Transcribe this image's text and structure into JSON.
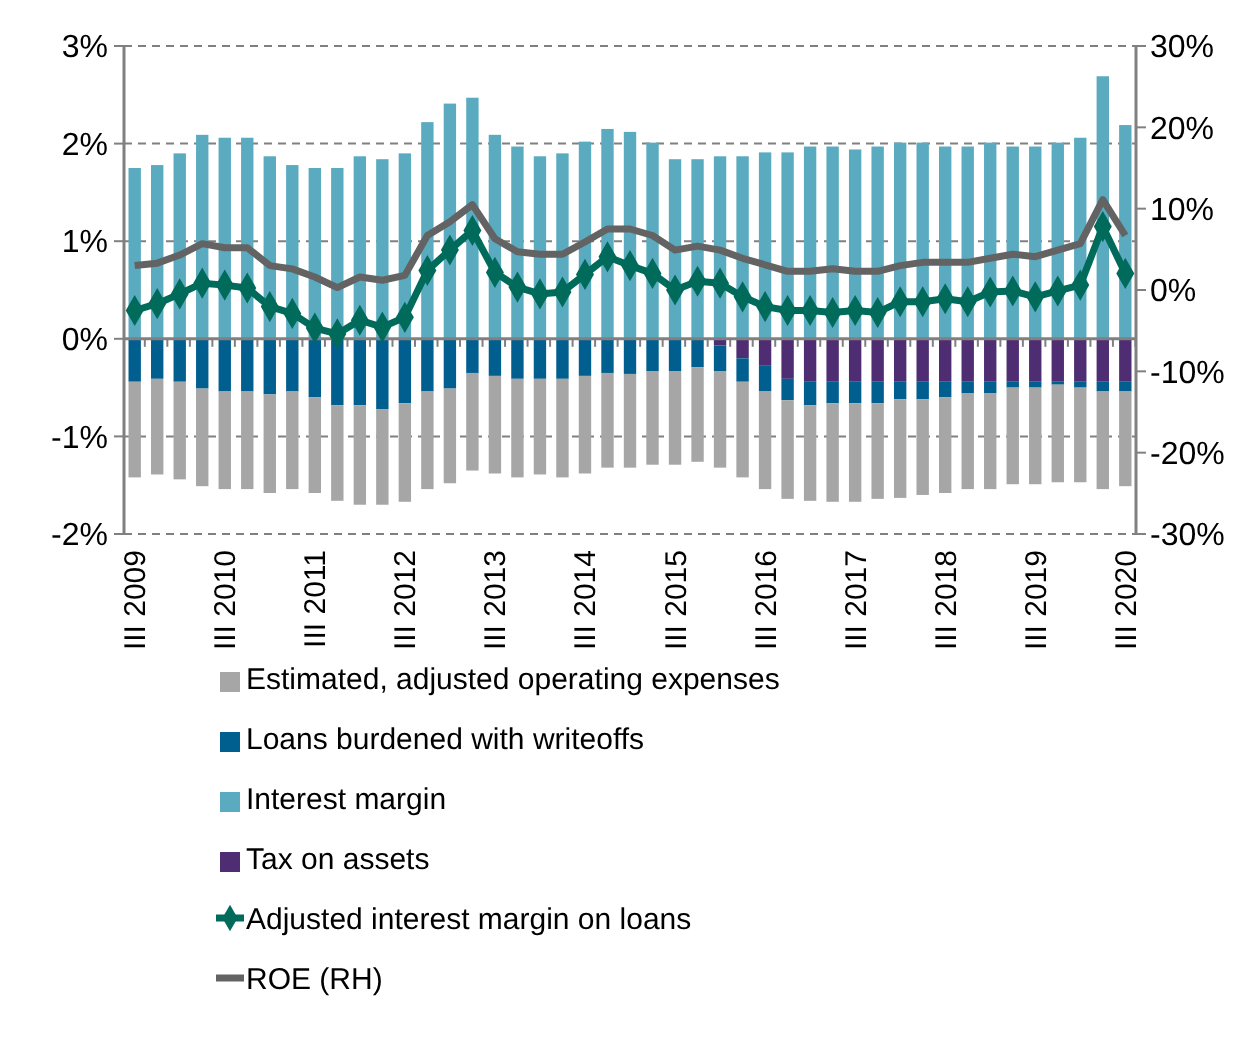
{
  "chart_data": {
    "type": "bar",
    "stacked": true,
    "categories": [
      "III 2009",
      null,
      null,
      null,
      "III 2010",
      null,
      null,
      null,
      "III 2011",
      null,
      null,
      null,
      "III 2012",
      null,
      null,
      null,
      "III 2013",
      null,
      null,
      null,
      "III 2014",
      null,
      null,
      null,
      "III 2015",
      null,
      null,
      null,
      "III 2016",
      null,
      null,
      null,
      "III 2017",
      null,
      null,
      null,
      "III 2018",
      null,
      null,
      null,
      "III 2019",
      null,
      null,
      null,
      "III 2020"
    ],
    "series": [
      {
        "name": "Tax on assets",
        "color": "#4f2d72",
        "values": [
          0,
          0,
          0,
          0,
          0,
          0,
          0,
          0,
          0,
          0,
          0,
          0,
          0,
          0,
          0,
          0,
          0,
          0,
          0,
          0,
          0,
          0,
          0,
          0,
          0,
          0,
          -0.07,
          -0.2,
          -0.27,
          -0.41,
          -0.44,
          -0.44,
          -0.44,
          -0.44,
          -0.44,
          -0.44,
          -0.44,
          -0.44,
          -0.44,
          -0.44,
          -0.44,
          -0.44,
          -0.44,
          -0.44,
          -0.44
        ]
      },
      {
        "name": "Interest margin",
        "color": "#5aabc0",
        "values": [
          1.75,
          1.78,
          1.9,
          2.09,
          2.06,
          2.06,
          1.87,
          1.78,
          1.75,
          1.75,
          1.87,
          1.84,
          1.9,
          2.22,
          2.41,
          2.47,
          2.09,
          1.97,
          1.87,
          1.9,
          2.02,
          2.15,
          2.12,
          2.01,
          1.84,
          1.84,
          1.87,
          1.87,
          1.91,
          1.91,
          1.97,
          1.97,
          1.94,
          1.97,
          2.01,
          2.01,
          1.97,
          1.97,
          2.01,
          1.97,
          1.97,
          2.01,
          2.06,
          2.69,
          2.19
        ]
      },
      {
        "name": "Loans burdened with writeoffs",
        "color": "#005f8f",
        "values": [
          -0.44,
          -0.41,
          -0.44,
          -0.51,
          -0.54,
          -0.54,
          -0.57,
          -0.54,
          -0.6,
          -0.68,
          -0.68,
          -0.72,
          -0.66,
          -0.54,
          -0.51,
          -0.35,
          -0.38,
          -0.41,
          -0.41,
          -0.41,
          -0.38,
          -0.35,
          -0.36,
          -0.33,
          -0.33,
          -0.29,
          -0.26,
          -0.24,
          -0.27,
          -0.22,
          -0.24,
          -0.22,
          -0.22,
          -0.22,
          -0.18,
          -0.18,
          -0.16,
          -0.12,
          -0.12,
          -0.06,
          -0.06,
          -0.03,
          -0.06,
          -0.1,
          -0.1
        ]
      },
      {
        "name": "Estimated, adjusted operating expenses",
        "color": "#a6a6a6",
        "values": [
          -0.98,
          -0.98,
          -1,
          -1,
          -1,
          -1,
          -1.01,
          -1,
          -0.98,
          -0.98,
          -1.02,
          -0.98,
          -1.01,
          -1,
          -0.97,
          -1,
          -1,
          -1.01,
          -0.98,
          -1.01,
          -1,
          -0.97,
          -0.96,
          -0.96,
          -0.96,
          -0.97,
          -0.99,
          -0.98,
          -1,
          -1.01,
          -0.98,
          -1.01,
          -1.01,
          -0.98,
          -1.01,
          -0.98,
          -0.98,
          -0.98,
          -0.98,
          -0.99,
          -0.99,
          -1,
          -0.97,
          -1,
          -0.97
        ]
      },
      {
        "name": "Adjusted interest margin on loans",
        "type": "line",
        "marker": "diamond",
        "color": "#006b5b",
        "values": [
          0.29,
          0.36,
          0.46,
          0.57,
          0.55,
          0.52,
          0.33,
          0.26,
          0.11,
          0.05,
          0.19,
          0.12,
          0.22,
          0.7,
          0.91,
          1.11,
          0.68,
          0.53,
          0.46,
          0.48,
          0.66,
          0.84,
          0.75,
          0.67,
          0.5,
          0.59,
          0.57,
          0.43,
          0.33,
          0.29,
          0.29,
          0.27,
          0.29,
          0.27,
          0.38,
          0.38,
          0.41,
          0.38,
          0.48,
          0.49,
          0.43,
          0.49,
          0.55,
          1.15,
          0.67
        ]
      },
      {
        "name": "ROE (RH)",
        "type": "line",
        "axis": "y2",
        "marker": "none",
        "color": "#636363",
        "values": [
          3,
          3.3,
          4.3,
          5.7,
          5.2,
          5.2,
          3,
          2.6,
          1.6,
          0.3,
          1.6,
          1.2,
          1.8,
          6.7,
          8.4,
          10.5,
          6.3,
          4.7,
          4.4,
          4.4,
          5.9,
          7.5,
          7.5,
          6.7,
          4.9,
          5.4,
          4.9,
          3.9,
          3.1,
          2.3,
          2.3,
          2.6,
          2.3,
          2.3,
          3,
          3.4,
          3.4,
          3.4,
          3.9,
          4.4,
          4.1,
          4.9,
          5.7,
          11.1,
          6.7
        ]
      }
    ],
    "ylim": [
      -2,
      3
    ],
    "yticks": [
      {
        "value": -2,
        "label": "-2%"
      },
      {
        "value": -1,
        "label": "-1%"
      },
      {
        "value": 0,
        "label": "0%"
      },
      {
        "value": 1,
        "label": "1%"
      },
      {
        "value": 2,
        "label": "2%"
      },
      {
        "value": 3,
        "label": "3%"
      }
    ],
    "y2lim": [
      -30,
      30
    ],
    "y2ticks": [
      {
        "value": -30,
        "label": "-30%"
      },
      {
        "value": -20,
        "label": "-20%"
      },
      {
        "value": -10,
        "label": "-10%"
      },
      {
        "value": 0,
        "label": "0%"
      },
      {
        "value": 10,
        "label": "10%"
      },
      {
        "value": 20,
        "label": "20%"
      },
      {
        "value": 30,
        "label": "30%"
      }
    ],
    "grid": "y",
    "legend": "bottom"
  }
}
